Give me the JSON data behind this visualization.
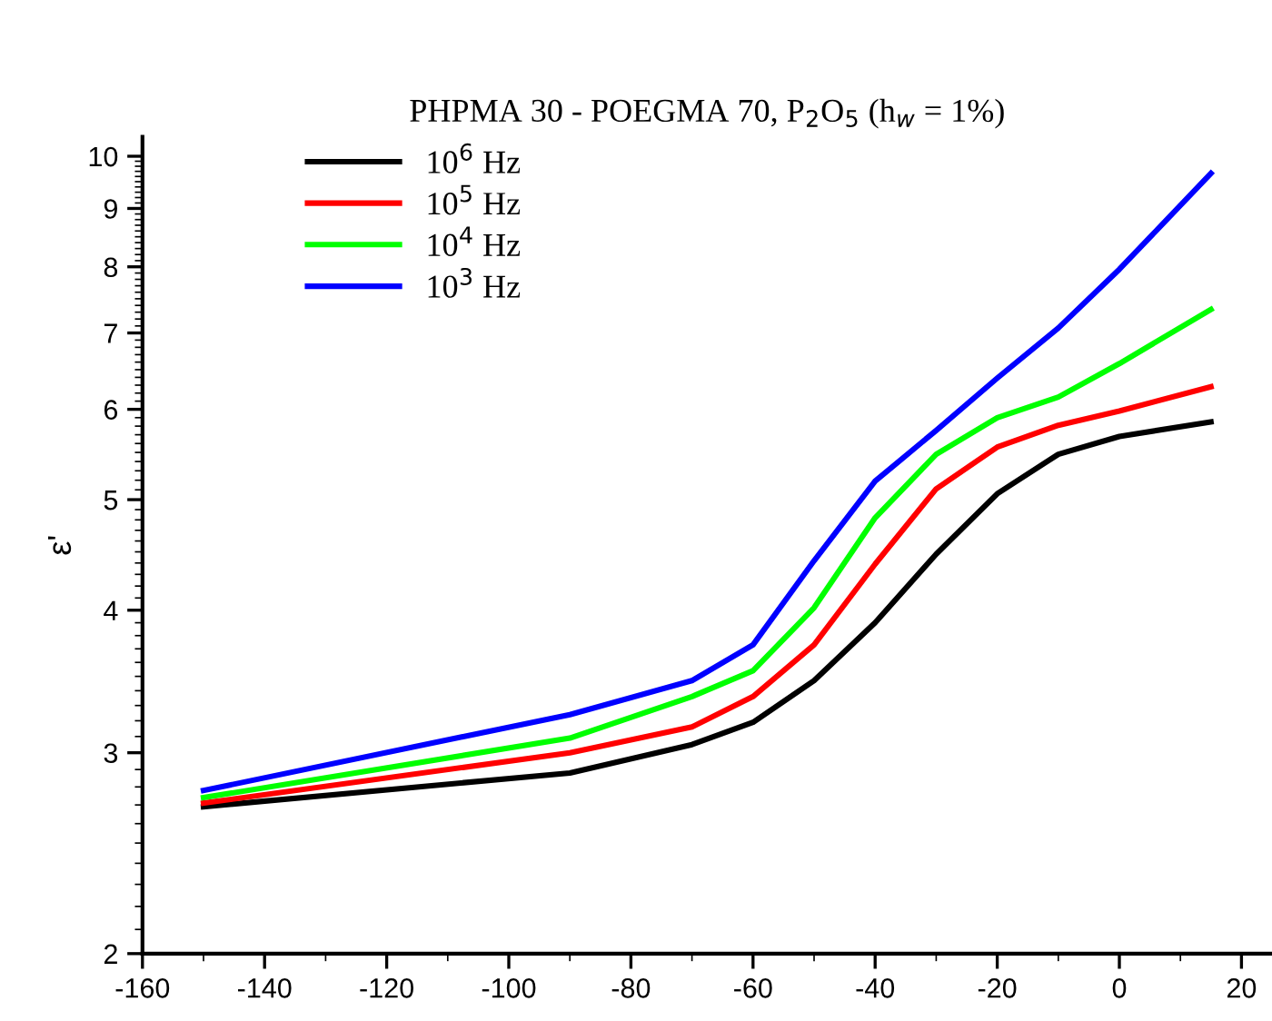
{
  "chart_data": {
    "type": "line",
    "title": "PHPMA 30 - POEGMA 70, P$_{2}$O$_{5}$ (h$_{w}$ = 1%)",
    "ylabel": "ε'",
    "x": [
      -150,
      -90,
      -70,
      -60,
      -50,
      -40,
      -30,
      -20,
      -10,
      0,
      15
    ],
    "series": [
      {
        "name": "10$^{6}$ Hz",
        "color": "#000000",
        "values": [
          2.69,
          2.88,
          3.05,
          3.19,
          3.47,
          3.9,
          4.48,
          5.06,
          5.48,
          5.68,
          5.85
        ]
      },
      {
        "name": "10$^{5}$ Hz",
        "color": "#ff0000",
        "values": [
          2.71,
          3.0,
          3.16,
          3.36,
          3.73,
          4.39,
          5.11,
          5.56,
          5.81,
          5.98,
          6.28
        ]
      },
      {
        "name": "10$^{4}$ Hz",
        "color": "#00ff00",
        "values": [
          2.74,
          3.09,
          3.36,
          3.54,
          4.02,
          4.82,
          5.48,
          5.9,
          6.15,
          6.58,
          7.34
        ]
      },
      {
        "name": "10$^{3}$ Hz",
        "color": "#0000ff",
        "values": [
          2.78,
          3.24,
          3.47,
          3.73,
          4.42,
          5.19,
          5.75,
          6.39,
          7.07,
          7.96,
          9.66
        ]
      }
    ],
    "log": "y",
    "xlim": [
      -160,
      25
    ],
    "ylim": [
      2,
      10.4
    ],
    "xticks": [
      -160,
      -140,
      -120,
      -100,
      -80,
      -60,
      -40,
      -20,
      0,
      20
    ],
    "yticks": [
      2,
      3,
      4,
      5,
      6,
      7,
      8,
      9,
      10
    ],
    "legend": "top left",
    "grid": false,
    "marker": "none",
    "line_style": "solid"
  }
}
